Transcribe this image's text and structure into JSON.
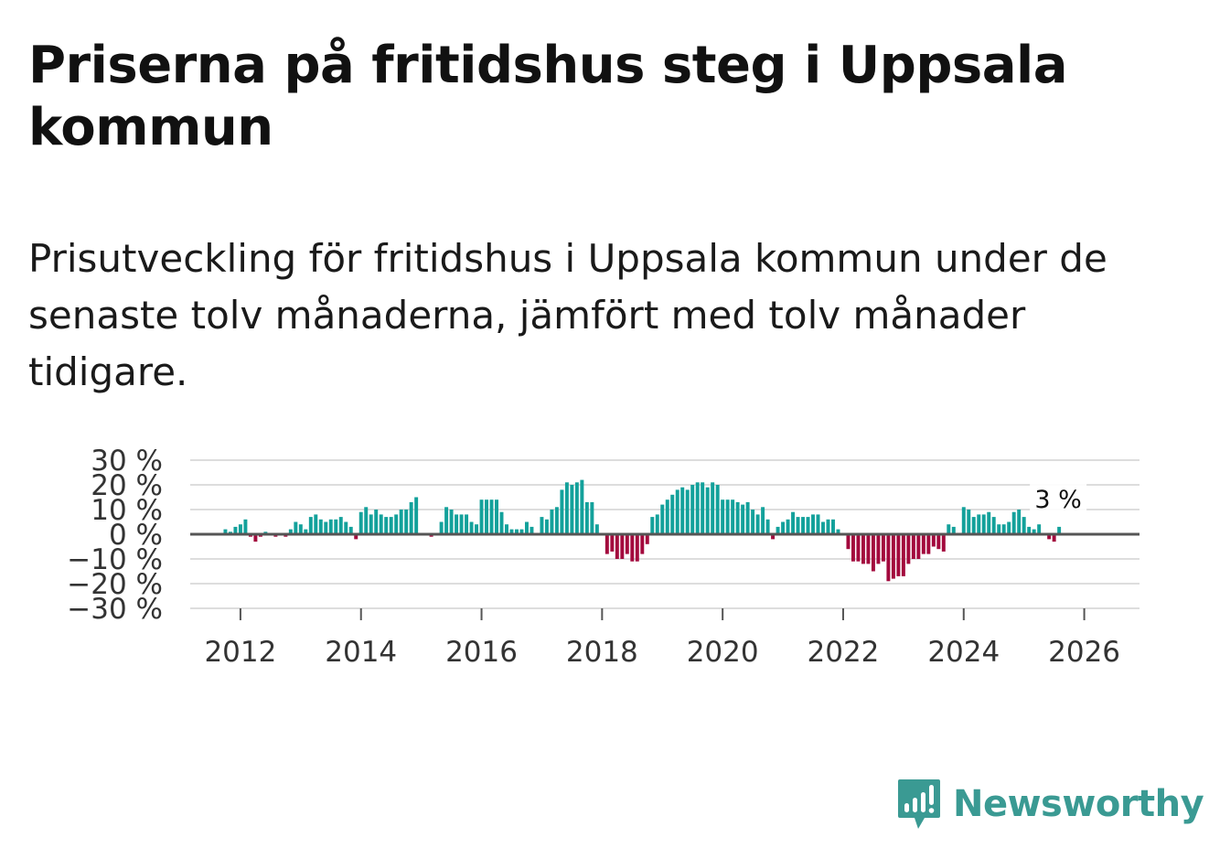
{
  "title": "Priserna på fritidshus steg i Uppsala kommun",
  "subtitle": "Prisutveckling för fritidshus i Uppsala kommun under de senaste tolv månaderna, jämfört med tolv månader tidigare.",
  "brand": {
    "name": "Newsworthy",
    "color": "#3a9a93"
  },
  "colors": {
    "positive": "#13a19b",
    "negative": "#a3093d",
    "zero_line": "#555555",
    "grid": "#dddddd"
  },
  "chart_data": {
    "type": "bar",
    "title": "Priserna på fritidshus steg i Uppsala kommun",
    "xlabel": "",
    "ylabel": "",
    "unit": "%",
    "ylim": [
      -30,
      30
    ],
    "xlim": [
      "2011-03",
      "2026-12"
    ],
    "y_ticks": [
      {
        "value": 30,
        "label": "30 %"
      },
      {
        "value": 20,
        "label": "20 %"
      },
      {
        "value": 10,
        "label": "10 %"
      },
      {
        "value": 0,
        "label": "0 %"
      },
      {
        "value": -10,
        "label": "−10 %"
      },
      {
        "value": -20,
        "label": "−20 %"
      },
      {
        "value": -30,
        "label": "−30 %"
      }
    ],
    "x_ticks": [
      {
        "value": 2012,
        "label": "2012"
      },
      {
        "value": 2014,
        "label": "2014"
      },
      {
        "value": 2016,
        "label": "2016"
      },
      {
        "value": 2018,
        "label": "2018"
      },
      {
        "value": 2020,
        "label": "2020"
      },
      {
        "value": 2022,
        "label": "2022"
      },
      {
        "value": 2024,
        "label": "2024"
      },
      {
        "value": 2026,
        "label": "2026"
      }
    ],
    "start": "2011-09",
    "values": [
      null,
      2,
      1,
      3,
      4,
      6,
      -1,
      -3,
      -1,
      1,
      0,
      -1,
      0,
      -1,
      2,
      5,
      4,
      2,
      7,
      8,
      6,
      5,
      6,
      6,
      7,
      5,
      3,
      -2,
      9,
      11,
      8,
      10,
      8,
      7,
      7,
      8,
      10,
      10,
      13,
      15,
      null,
      null,
      -1,
      null,
      5,
      11,
      10,
      8,
      8,
      8,
      5,
      4,
      14,
      14,
      14,
      14,
      9,
      4,
      2,
      2,
      2,
      5,
      3,
      null,
      7,
      6,
      10,
      11,
      18,
      21,
      20,
      21,
      22,
      13,
      13,
      4,
      null,
      -8,
      -7,
      -10,
      -10,
      -8,
      -11,
      -11,
      -8,
      -4,
      7,
      8,
      12,
      14,
      16,
      18,
      19,
      18,
      20,
      21,
      21,
      19,
      21,
      20,
      14,
      14,
      14,
      13,
      12,
      13,
      10,
      8,
      11,
      6,
      -2,
      3,
      5,
      6,
      9,
      7,
      7,
      7,
      8,
      8,
      5,
      6,
      6,
      2,
      null,
      -6,
      -11,
      -11,
      -12,
      -12,
      -15,
      -12,
      -11,
      -19,
      -18,
      -17,
      -17,
      -12,
      -10,
      -10,
      -8,
      -8,
      -5,
      -6,
      -7,
      4,
      3,
      null,
      11,
      10,
      7,
      8,
      8,
      9,
      7,
      4,
      4,
      5,
      9,
      10,
      7,
      3,
      2,
      4,
      null,
      -2,
      -3,
      3
    ],
    "last_value_label": "3 %"
  }
}
